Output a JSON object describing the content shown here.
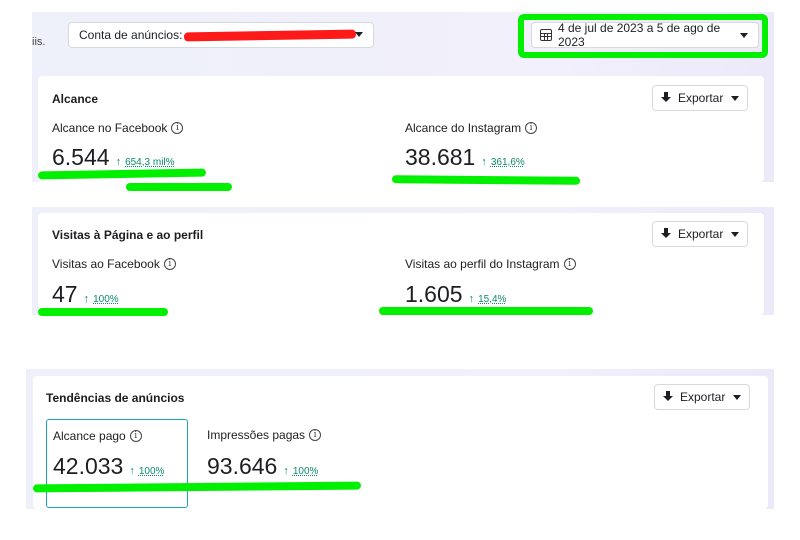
{
  "topbar": {
    "cut_text": "iis.",
    "account_label": "Conta de anúncios:",
    "date_range": "4 de jul de 2023 a 5 de ago de 2023"
  },
  "icons": {
    "calendar": "calendar-icon",
    "download": "download-icon",
    "info": "info-icon",
    "caret": "caret-down-icon",
    "up_arrow": "↑"
  },
  "colors": {
    "highlight": "#00f000",
    "redaction": "#ff1a1a",
    "positive_delta": "#0a8a6d",
    "selected_border": "#1aa6b8"
  },
  "export_label": "Exportar",
  "info_glyph": "i",
  "sections": [
    {
      "title": "Alcance",
      "metrics": [
        {
          "label": "Alcance no Facebook",
          "value": "6.544",
          "delta": "654,3 mil%"
        },
        {
          "label": "Alcance do Instagram",
          "value": "38.681",
          "delta": "361,6%"
        }
      ]
    },
    {
      "title": "Visitas à Página e ao perfil",
      "metrics": [
        {
          "label": "Visitas ao Facebook",
          "value": "47",
          "delta": "100%"
        },
        {
          "label": "Visitas ao perfil do Instagram",
          "value": "1.605",
          "delta": "15,4%"
        }
      ]
    },
    {
      "title": "Tendências de anúncios",
      "metrics": [
        {
          "label": "Alcance pago",
          "value": "42.033",
          "delta": "100%"
        },
        {
          "label": "Impressões pagas",
          "value": "93.646",
          "delta": "100%"
        }
      ]
    }
  ]
}
